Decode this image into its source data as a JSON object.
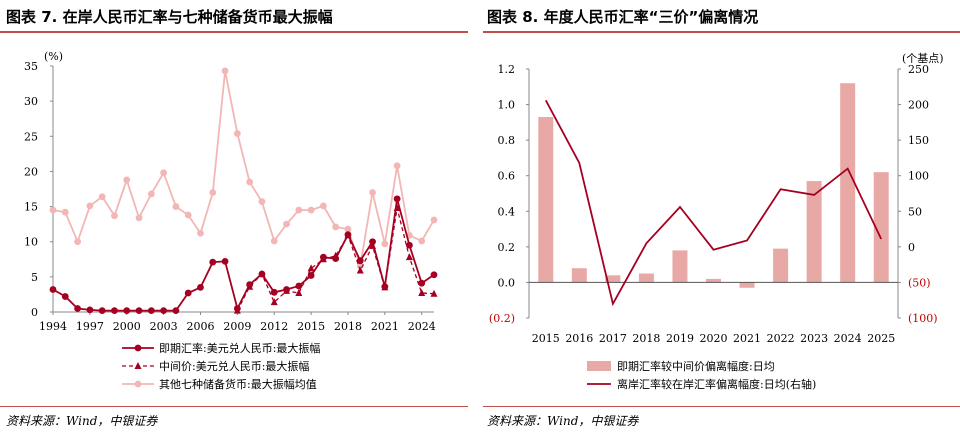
{
  "left": {
    "title": "图表 7. 在岸人民币汇率与七种储备货币最大振幅",
    "source": "资料来源：Wind，中银证券",
    "chart_data": {
      "type": "line",
      "unit": "(%)",
      "ylim": [
        0,
        35
      ],
      "yticks": [
        0,
        5,
        10,
        15,
        20,
        25,
        30,
        35
      ],
      "xlim": [
        1994,
        2025
      ],
      "xticks": [
        1994,
        1997,
        2000,
        2003,
        2006,
        2009,
        2012,
        2015,
        2018,
        2021,
        2024
      ],
      "x": [
        1994,
        1995,
        1996,
        1997,
        1998,
        1999,
        2000,
        2001,
        2002,
        2003,
        2004,
        2005,
        2006,
        2007,
        2008,
        2009,
        2010,
        2011,
        2012,
        2013,
        2014,
        2015,
        2016,
        2017,
        2018,
        2019,
        2020,
        2021,
        2022,
        2023,
        2024,
        2025
      ],
      "series": [
        {
          "name": "即期汇率:美元兑人民币:最大振幅",
          "color": "#a50021",
          "style": "solid-circle",
          "values": [
            3.2,
            2.2,
            0.5,
            0.3,
            0.2,
            0.2,
            0.2,
            0.2,
            0.2,
            0.2,
            0.2,
            2.7,
            3.5,
            7.1,
            7.2,
            0.5,
            3.9,
            5.4,
            2.8,
            3.2,
            3.7,
            5.2,
            7.8,
            7.6,
            11.0,
            7.3,
            10.0,
            3.6,
            16.1,
            9.5,
            4.1,
            5.3
          ]
        },
        {
          "name": "中间价:美元兑人民币:最大振幅",
          "color": "#a50021",
          "style": "dashed-triangle",
          "values": [
            null,
            null,
            null,
            null,
            null,
            null,
            null,
            null,
            null,
            null,
            null,
            null,
            null,
            null,
            null,
            0.2,
            3.6,
            5.4,
            1.4,
            3.0,
            2.7,
            6.2,
            7.5,
            8.0,
            10.9,
            5.9,
            9.4,
            3.5,
            14.8,
            7.8,
            2.7,
            2.6
          ]
        },
        {
          "name": "其他七种储备货币:最大振幅均值",
          "color": "#f2b7b5",
          "style": "solid-circle",
          "values": [
            14.5,
            14.2,
            10.0,
            15.1,
            16.4,
            13.7,
            18.8,
            13.4,
            16.8,
            19.8,
            15.0,
            13.8,
            11.2,
            17.0,
            34.3,
            25.4,
            18.5,
            15.7,
            10.1,
            12.5,
            14.5,
            14.5,
            15.1,
            12.1,
            11.8,
            6.6,
            17.0,
            9.7,
            20.8,
            10.9,
            10.1,
            13.1
          ]
        }
      ]
    }
  },
  "right": {
    "title": "图表 8. 年度人民币汇率“三价”偏离情况",
    "source": "资料来源：Wind，中银证券",
    "chart_data": {
      "type": "bar",
      "categories": [
        "2015",
        "2016",
        "2017",
        "2018",
        "2019",
        "2020",
        "2021",
        "2022",
        "2023",
        "2024",
        "2025"
      ],
      "left_axis": {
        "ylim": [
          -0.2,
          1.2
        ],
        "ticks": [
          "1.2",
          "1.0",
          "0.8",
          "0.6",
          "0.4",
          "0.2",
          "0.0",
          "(0.2)"
        ]
      },
      "right_axis": {
        "unit": "(个基点)",
        "ylim": [
          -100,
          250
        ],
        "ticks": [
          "250",
          "200",
          "150",
          "100",
          "50",
          "0",
          "(50)",
          "(100)"
        ]
      },
      "series": [
        {
          "name": "即期汇率较中间价偏离幅度:日均",
          "type": "bar",
          "axis": "left",
          "color": "#e8a9a6",
          "values": [
            0.93,
            0.08,
            0.04,
            0.05,
            0.18,
            0.02,
            -0.03,
            0.19,
            0.57,
            1.12,
            0.62
          ]
        },
        {
          "name": "离岸汇率较在岸汇率偏离幅度:日均(右轴)",
          "type": "line",
          "axis": "right",
          "color": "#a50021",
          "values": [
            206,
            118,
            -80,
            5,
            56,
            -4,
            9,
            81,
            73,
            110,
            11
          ]
        }
      ]
    }
  }
}
